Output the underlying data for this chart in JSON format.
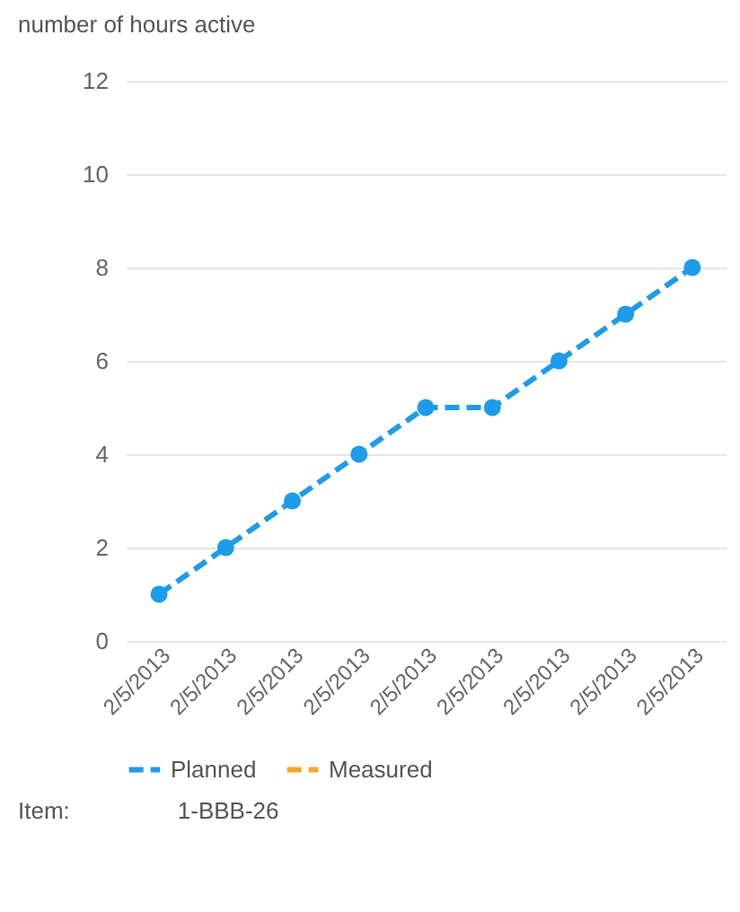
{
  "chart_data": {
    "type": "line",
    "title": "number of hours active",
    "categories": [
      "2/5/2013",
      "2/5/2013",
      "2/5/2013",
      "2/5/2013",
      "2/5/2013",
      "2/5/2013",
      "2/5/2013",
      "2/5/2013",
      "2/5/2013"
    ],
    "series": [
      {
        "name": "Planned",
        "color": "#1e9be9",
        "values": [
          1,
          2,
          3,
          4,
          5,
          5,
          6,
          7,
          8
        ]
      },
      {
        "name": "Measured",
        "color": "#f5a623",
        "values": [
          null,
          null,
          null,
          null,
          null,
          null,
          null,
          null,
          null
        ]
      }
    ],
    "ylim": [
      0,
      12
    ],
    "yticks": [
      0,
      2,
      4,
      6,
      8,
      10,
      12
    ],
    "grid": "y",
    "legend": "bottom",
    "marker": "circle",
    "line_style": "dashed",
    "annotations": [
      "Item:",
      "1-BBB-26"
    ]
  }
}
